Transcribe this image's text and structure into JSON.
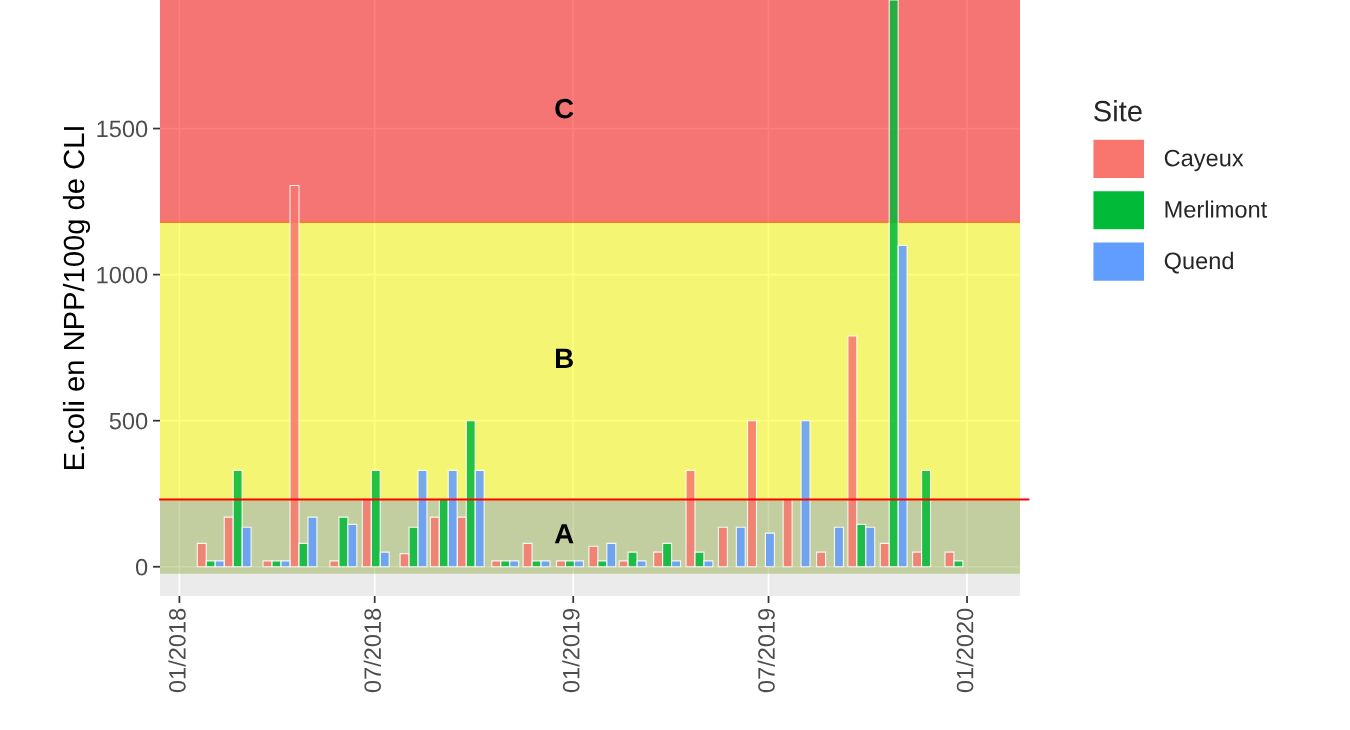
{
  "chart_data": {
    "type": "bar",
    "ylabel": "E.coli en NPP/100g de CLI",
    "legend_title": "Site",
    "x": [
      "2018-01-30",
      "2018-02-24",
      "2018-04-01",
      "2018-04-26",
      "2018-06-02",
      "2018-07-02",
      "2018-08-06",
      "2018-09-03",
      "2018-09-28",
      "2018-10-30",
      "2018-11-28",
      "2018-12-29",
      "2019-01-28",
      "2019-02-25",
      "2019-03-29",
      "2019-04-28",
      "2019-05-28",
      "2019-06-24",
      "2019-07-27",
      "2019-08-27",
      "2019-09-25",
      "2019-10-25",
      "2019-11-24",
      "2019-12-24"
    ],
    "series": [
      {
        "name": "Cayeux",
        "color": "#f8766d",
        "values": [
          80,
          170,
          20,
          1305,
          20,
          230,
          45,
          170,
          170,
          20,
          80,
          20,
          70,
          20,
          50,
          330,
          135,
          500,
          230,
          50,
          790,
          80,
          50,
          50
        ]
      },
      {
        "name": "Merlimont",
        "color": "#00ba38",
        "values": [
          20,
          330,
          20,
          80,
          170,
          330,
          135,
          230,
          500,
          20,
          20,
          20,
          20,
          50,
          80,
          50,
          null,
          null,
          null,
          null,
          145,
          1940,
          330,
          20
        ]
      },
      {
        "name": "Quend",
        "color": "#619cff",
        "values": [
          20,
          135,
          20,
          170,
          145,
          50,
          330,
          330,
          330,
          20,
          20,
          20,
          80,
          20,
          20,
          20,
          135,
          115,
          500,
          135,
          135,
          1100,
          null,
          null
        ]
      }
    ],
    "xlim": [
      "2017-12-14",
      "2020-02-19"
    ],
    "xticks": [
      {
        "value": "2018-01-01",
        "label": "01/2018"
      },
      {
        "value": "2018-07-01",
        "label": "07/2018"
      },
      {
        "value": "2019-01-01",
        "label": "01/2019"
      },
      {
        "value": "2019-07-01",
        "label": "07/2019"
      },
      {
        "value": "2020-01-01",
        "label": "01/2020"
      }
    ],
    "ylim": [
      -100,
      1940
    ],
    "yticks": [
      0,
      500,
      1000,
      1500
    ],
    "bands": [
      {
        "axis": "y",
        "from": -20,
        "to": 230,
        "color": "#9bb355",
        "label": "A"
      },
      {
        "axis": "y",
        "from": 230,
        "to": 1180,
        "color": "#ffff00",
        "label": "B"
      },
      {
        "axis": "y",
        "from": 1180,
        "to": 1940,
        "color": "#ff0000",
        "label": "C"
      }
    ],
    "ref_lines": [
      {
        "axis": "y",
        "value": 230,
        "color": "#ff0000"
      }
    ],
    "grid": true,
    "legend": "right"
  }
}
